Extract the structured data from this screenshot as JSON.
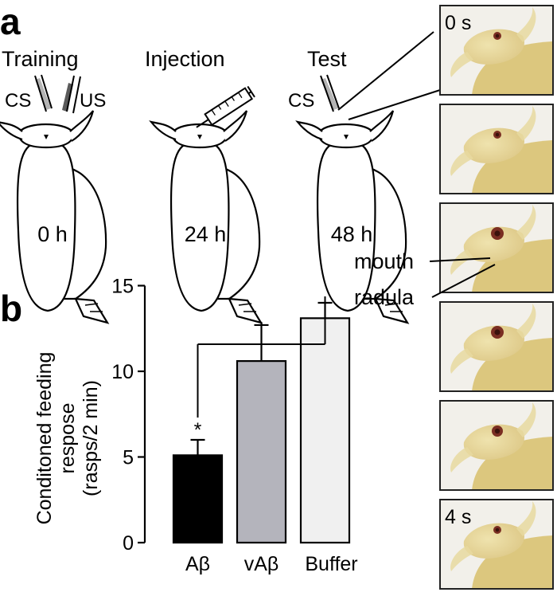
{
  "panel_a": {
    "letter": "a",
    "stages": [
      {
        "label": "Training",
        "time": "0 h",
        "stimuli": [
          "CS",
          "US"
        ]
      },
      {
        "label": "Injection",
        "time": "24 h"
      },
      {
        "label": "Test",
        "time": "48 h",
        "stimuli": [
          "CS"
        ]
      }
    ]
  },
  "panel_b": {
    "letter": "b"
  },
  "photo_strip": {
    "frames": [
      {
        "time": "0 s"
      },
      {
        "time": ""
      },
      {
        "time": ""
      },
      {
        "time": ""
      },
      {
        "time": ""
      },
      {
        "time": "4 s"
      }
    ],
    "annotations": [
      "mouth",
      "radula"
    ]
  },
  "chart_data": {
    "type": "bar",
    "categories": [
      "Aβ",
      "vAβ",
      "Buffer"
    ],
    "values": [
      5.1,
      10.6,
      13.1
    ],
    "errors": [
      0.9,
      2.1,
      0.9
    ],
    "colors": [
      "#000000",
      "#b4b4bc",
      "#f0f0f0"
    ],
    "ylabel_lines": [
      "Conditoned feeding",
      "respose",
      "(rasps/2 min)"
    ],
    "ylim": [
      0,
      15
    ],
    "yticks": [
      0,
      5,
      10,
      15
    ],
    "significance": {
      "marker": "*",
      "bar": "Aβ",
      "compared_with": [
        "vAβ",
        "Buffer"
      ]
    },
    "grid": false,
    "legend": "none"
  },
  "colors": {
    "snail_outline": "#000000",
    "photo_body": "#e6d7a0",
    "photo_background": "#f2f0ea",
    "us_electrode": "#5a5a5a",
    "cs_electrode": "#b4b4b4"
  }
}
